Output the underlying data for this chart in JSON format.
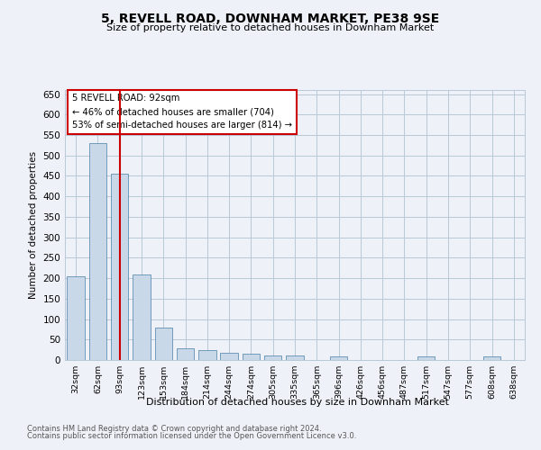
{
  "title": "5, REVELL ROAD, DOWNHAM MARKET, PE38 9SE",
  "subtitle": "Size of property relative to detached houses in Downham Market",
  "xlabel": "Distribution of detached houses by size in Downham Market",
  "ylabel": "Number of detached properties",
  "footer1": "Contains HM Land Registry data © Crown copyright and database right 2024.",
  "footer2": "Contains public sector information licensed under the Open Government Licence v3.0.",
  "categories": [
    "32sqm",
    "62sqm",
    "93sqm",
    "123sqm",
    "153sqm",
    "184sqm",
    "214sqm",
    "244sqm",
    "274sqm",
    "305sqm",
    "335sqm",
    "365sqm",
    "396sqm",
    "426sqm",
    "456sqm",
    "487sqm",
    "517sqm",
    "547sqm",
    "577sqm",
    "608sqm",
    "638sqm"
  ],
  "values": [
    205,
    530,
    455,
    210,
    80,
    28,
    25,
    18,
    15,
    10,
    10,
    0,
    8,
    0,
    0,
    0,
    8,
    0,
    0,
    8,
    0
  ],
  "bar_color": "#c8d8e8",
  "bar_edge_color": "#6090b0",
  "highlight_bar_index": 2,
  "highlight_line_color": "#cc0000",
  "annotation_text": "5 REVELL ROAD: 92sqm\n← 46% of detached houses are smaller (704)\n53% of semi-detached houses are larger (814) →",
  "annotation_box_facecolor": "#ffffff",
  "annotation_box_edgecolor": "#cc0000",
  "ylim": [
    0,
    660
  ],
  "yticks": [
    0,
    50,
    100,
    150,
    200,
    250,
    300,
    350,
    400,
    450,
    500,
    550,
    600,
    650
  ],
  "bg_color": "#eef2f8",
  "grid_color": "#b8c8d8"
}
